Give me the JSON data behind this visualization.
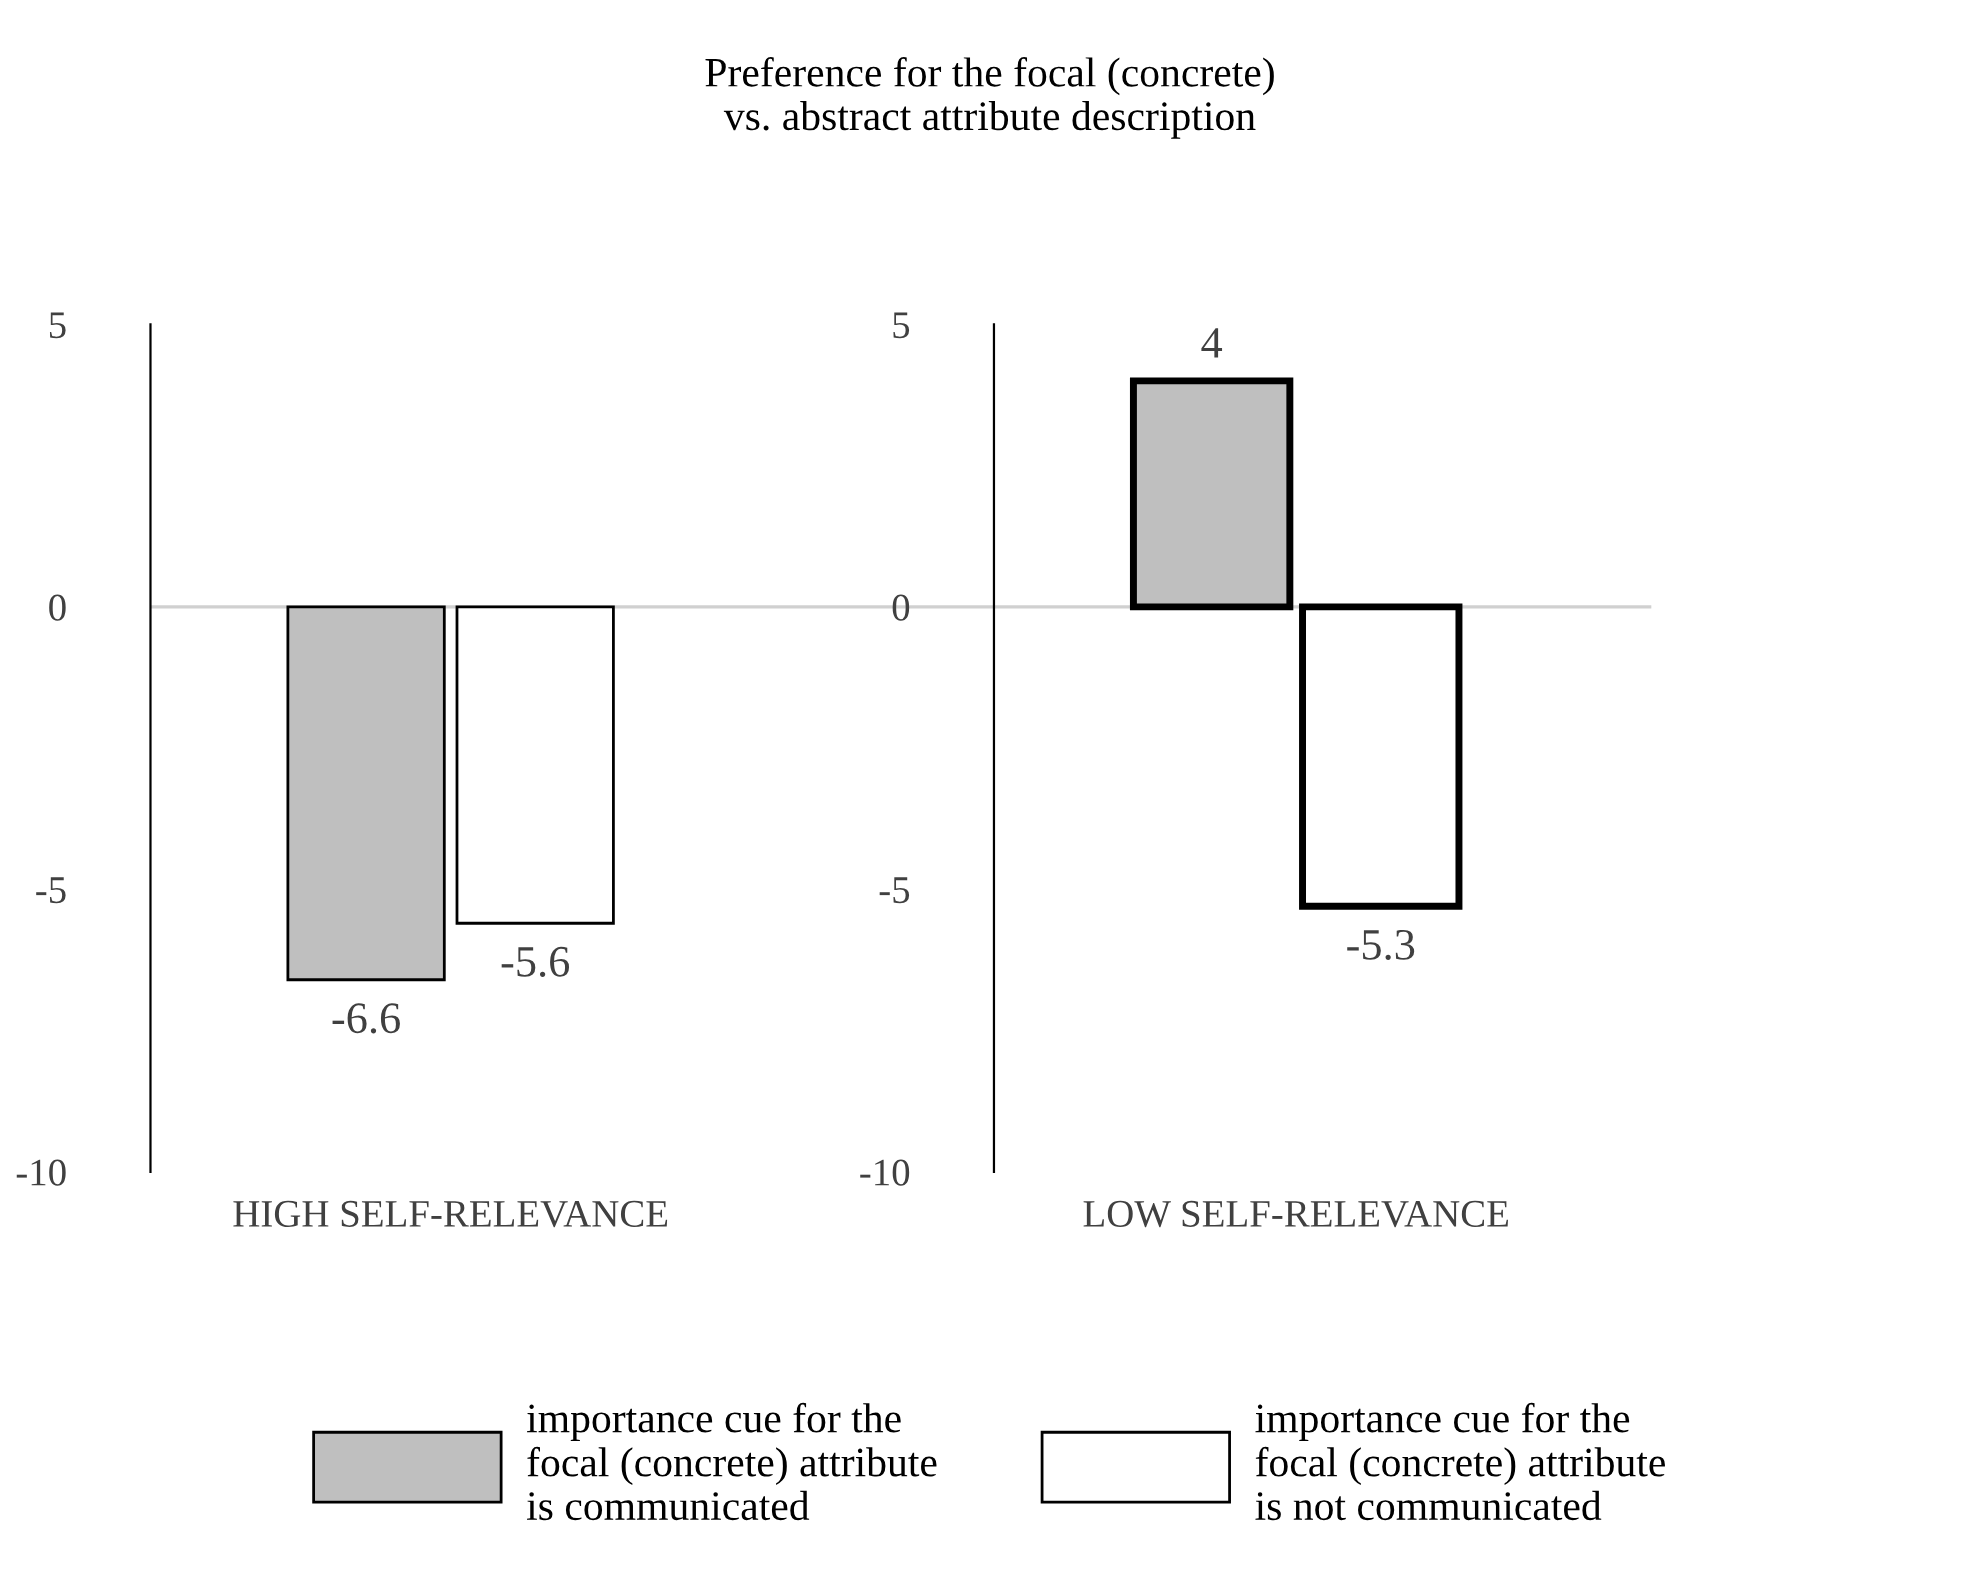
{
  "chart_data": {
    "type": "bar",
    "title": "Preference for the focal (concrete)\nvs. abstract attribute description",
    "categories": [
      "HIGH SELF-RELEVANCE",
      "LOW SELF-RELEVANCE"
    ],
    "ylim": [
      -10,
      5
    ],
    "yticks": [
      -10,
      -5,
      0,
      5
    ],
    "y2lim": [
      -10,
      5
    ],
    "y2ticks": [
      -10,
      -5,
      0,
      5
    ],
    "data_labels": true,
    "legend": "bottom",
    "ref_lines": [
      {
        "axis": "y",
        "value": 0,
        "color": "#d0d0d0"
      }
    ],
    "series": [
      {
        "name": "importance cue for the\nfocal (concrete) attribute\nis communicated",
        "color": "#bfbfbf",
        "values": [
          -6.6,
          4
        ]
      },
      {
        "name": "importance cue for the\nfocal (concrete) attribute\nis not communicated",
        "color": "#ffffff",
        "values": [
          -5.6,
          -5.3
        ]
      }
    ]
  }
}
